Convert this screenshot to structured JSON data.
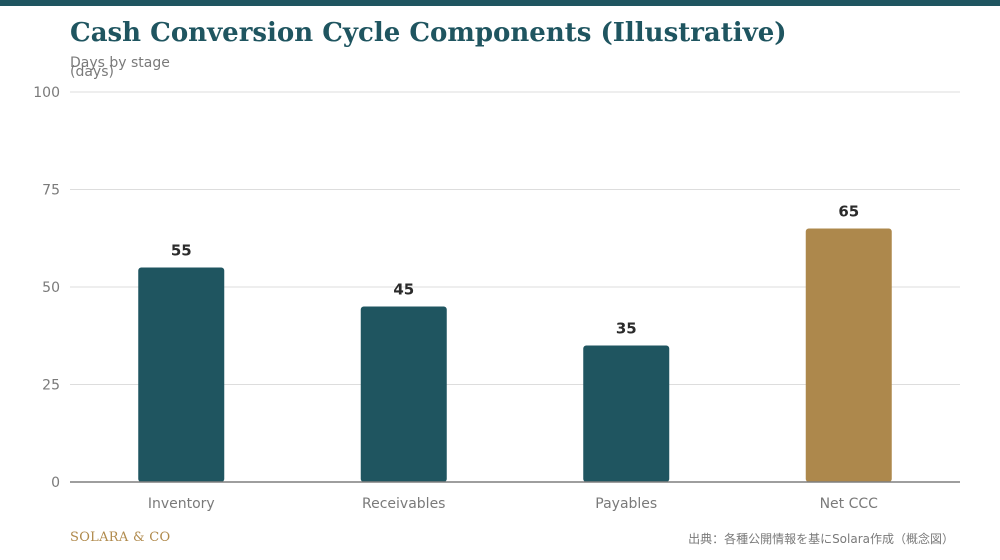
{
  "header": {
    "title": "Cash Conversion Cycle Components (Illustrative)",
    "subtitle": "Days by stage"
  },
  "footer": {
    "brand": "SOLARA & CO",
    "source": "出典：各種公開情報を基にSolara作成（概念図）"
  },
  "colors": {
    "primary": "#1f5560",
    "accent": "#ad884c",
    "grid": "#dddddd",
    "axis": "#7a7a7a"
  },
  "chart_data": {
    "type": "bar",
    "title": "Cash Conversion Cycle Components (Illustrative)",
    "subtitle": "Days by stage",
    "xlabel": "",
    "ylabel": "(days)",
    "categories": [
      "Inventory",
      "Receivables",
      "Payables",
      "Net CCC"
    ],
    "values": [
      55,
      45,
      35,
      65
    ],
    "data_labels": [
      "55",
      "45",
      "35",
      "65"
    ],
    "bar_colors": [
      "#1f5560",
      "#1f5560",
      "#1f5560",
      "#ad884c"
    ],
    "ylim": [
      0,
      100
    ],
    "yticks": [
      0,
      25,
      50,
      75,
      100
    ],
    "grid": true,
    "legend": "none"
  }
}
